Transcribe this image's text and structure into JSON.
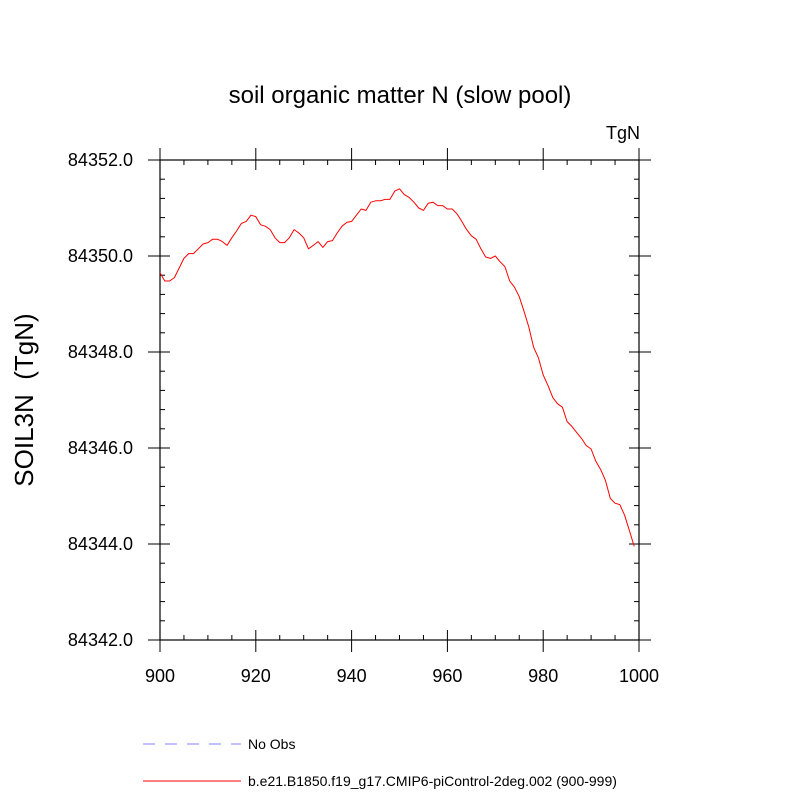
{
  "chart_data": {
    "type": "line",
    "title": "soil organic matter N (slow pool)",
    "units_label": "TgN",
    "xlabel": "",
    "ylabel": "SOIL3N  (TgN)",
    "xlim": [
      900,
      1000
    ],
    "ylim": [
      84342.0,
      84352.0
    ],
    "x_ticks": [
      900,
      920,
      940,
      960,
      980,
      1000
    ],
    "x_tick_labels": [
      "900",
      "920",
      "940",
      "960",
      "980",
      "1000"
    ],
    "y_ticks": [
      84342.0,
      84344.0,
      84346.0,
      84348.0,
      84350.0,
      84352.0
    ],
    "y_tick_labels": [
      "84342.0",
      "84344.0",
      "84346.0",
      "84348.0",
      "84350.0",
      "84352.0"
    ],
    "x_minor_step": 5,
    "y_minor_step": 0.4,
    "legend": [
      {
        "label": "No Obs",
        "color": "#8080ff",
        "dash": true
      },
      {
        "label": "b.e21.B1850.f19_g17.CMIP6-piControl-2deg.002 (900-999)",
        "color": "#ff0000",
        "dash": false
      }
    ],
    "series": [
      {
        "name": "b.e21.B1850.f19_g17.CMIP6-piControl-2deg.002 (900-999)",
        "color": "#ff0000",
        "x": [
          900,
          901,
          902,
          903,
          904,
          905,
          906,
          907,
          908,
          909,
          910,
          911,
          912,
          913,
          914,
          915,
          916,
          917,
          918,
          919,
          920,
          921,
          922,
          923,
          924,
          925,
          926,
          927,
          928,
          929,
          930,
          931,
          932,
          933,
          934,
          935,
          936,
          937,
          938,
          939,
          940,
          941,
          942,
          943,
          944,
          945,
          946,
          947,
          948,
          949,
          950,
          951,
          952,
          953,
          954,
          955,
          956,
          957,
          958,
          959,
          960,
          961,
          962,
          963,
          964,
          965,
          966,
          967,
          968,
          969,
          970,
          971,
          972,
          973,
          974,
          975,
          976,
          977,
          978,
          979,
          980,
          981,
          982,
          983,
          984,
          985,
          986,
          987,
          988,
          989,
          990,
          991,
          992,
          993,
          994,
          995,
          996,
          997,
          998,
          999
        ],
        "values": [
          84349.65,
          84349.48,
          84349.48,
          84349.55,
          84349.75,
          84349.95,
          84350.05,
          84350.05,
          84350.15,
          84350.25,
          84350.28,
          84350.35,
          84350.35,
          84350.3,
          84350.22,
          84350.38,
          84350.52,
          84350.68,
          84350.72,
          84350.85,
          84350.82,
          84350.65,
          84350.62,
          84350.55,
          84350.38,
          84350.28,
          84350.28,
          84350.38,
          84350.55,
          84350.48,
          84350.38,
          84350.15,
          84350.22,
          84350.3,
          84350.18,
          84350.3,
          84350.32,
          84350.48,
          84350.62,
          84350.7,
          84350.72,
          84350.85,
          84350.98,
          84350.95,
          84351.12,
          84351.15,
          84351.15,
          84351.18,
          84351.18,
          84351.35,
          84351.4,
          84351.28,
          84351.22,
          84351.12,
          84351.0,
          84350.95,
          84351.1,
          84351.12,
          84351.05,
          84351.05,
          84350.98,
          84350.98,
          84350.88,
          84350.72,
          84350.55,
          84350.42,
          84350.35,
          84350.15,
          84349.98,
          84349.95,
          84350.0,
          84349.88,
          84349.78,
          84349.48,
          84349.35,
          84349.15,
          84348.85,
          84348.52,
          84348.1,
          84347.88,
          84347.52,
          84347.3,
          84347.05,
          84346.92,
          84346.85,
          84346.55,
          84346.45,
          84346.32,
          84346.2,
          84346.05,
          84345.98,
          84345.72,
          84345.55,
          84345.32,
          84344.95,
          84344.85,
          84344.82,
          84344.6,
          84344.28,
          84343.95
        ]
      }
    ]
  }
}
